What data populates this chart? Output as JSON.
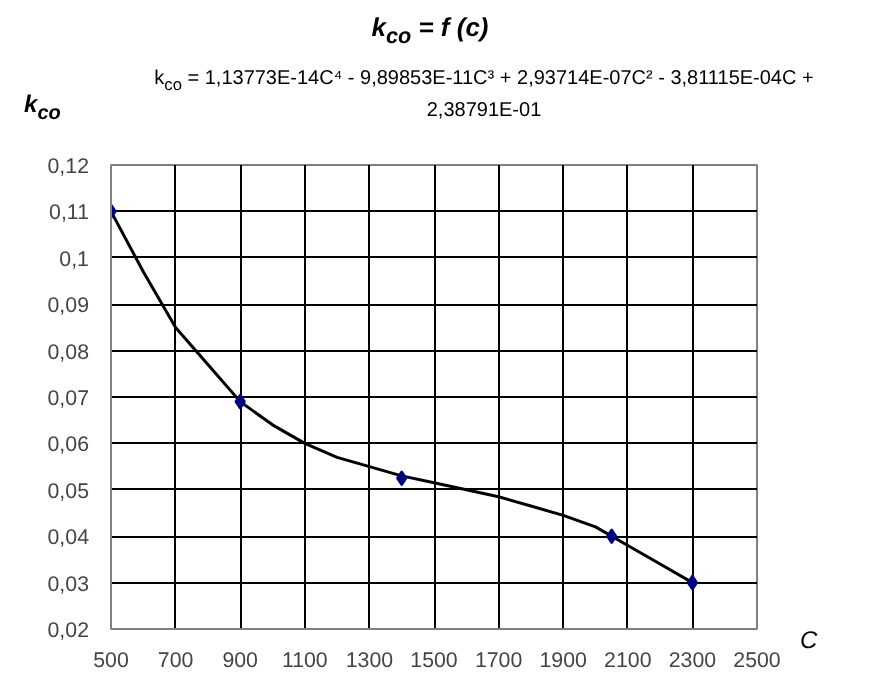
{
  "chart_data": {
    "type": "line",
    "title": "k$_{co}$ = f (c)",
    "ylabel": "k$_{co}$",
    "xlabel": "C",
    "annotations": [
      "k$_{co}$ = 1,13773E-14C⁴ - 9,89853E-11C³ + 2,93714E-07C² - 3,81115E-04C + 2,38791E-01"
    ],
    "series": [
      {
        "color": "#000000",
        "marker": "none",
        "x": [
          500,
          600,
          700,
          800,
          900,
          1000,
          1100,
          1200,
          1300,
          1400,
          1500,
          1600,
          1700,
          1800,
          1900,
          2000,
          2100,
          2200,
          2300
        ],
        "values": [
          0.11,
          0.097,
          0.085,
          0.077,
          0.069,
          0.064,
          0.06,
          0.057,
          0.055,
          0.053,
          0.0515,
          0.05,
          0.0485,
          0.0465,
          0.0445,
          0.042,
          0.038,
          0.034,
          0.03
        ]
      },
      {
        "type": "scatter",
        "color": "#000080",
        "marker": "diamond",
        "x": [
          500,
          900,
          1400,
          2050,
          2300
        ],
        "values": [
          0.11,
          0.069,
          0.0525,
          0.04,
          0.03
        ]
      }
    ],
    "xlim": [
      500,
      2500
    ],
    "xticks": [
      500,
      700,
      900,
      1100,
      1300,
      1500,
      1700,
      1900,
      2100,
      2300,
      2500
    ],
    "ylim": [
      0.02,
      0.12
    ],
    "yticks": [
      {
        "value": 0.02,
        "label": "0,02"
      },
      {
        "value": 0.03,
        "label": "0,03"
      },
      {
        "value": 0.04,
        "label": "0,04"
      },
      {
        "value": 0.05,
        "label": "0,05"
      },
      {
        "value": 0.06,
        "label": "0,06"
      },
      {
        "value": 0.07,
        "label": "0,07"
      },
      {
        "value": 0.08,
        "label": "0,08"
      },
      {
        "value": 0.09,
        "label": "0,09"
      },
      {
        "value": 0.1,
        "label": "0,1"
      },
      {
        "value": 0.11,
        "label": "0,11"
      },
      {
        "value": 0.12,
        "label": "0,12"
      }
    ],
    "grid": true
  }
}
